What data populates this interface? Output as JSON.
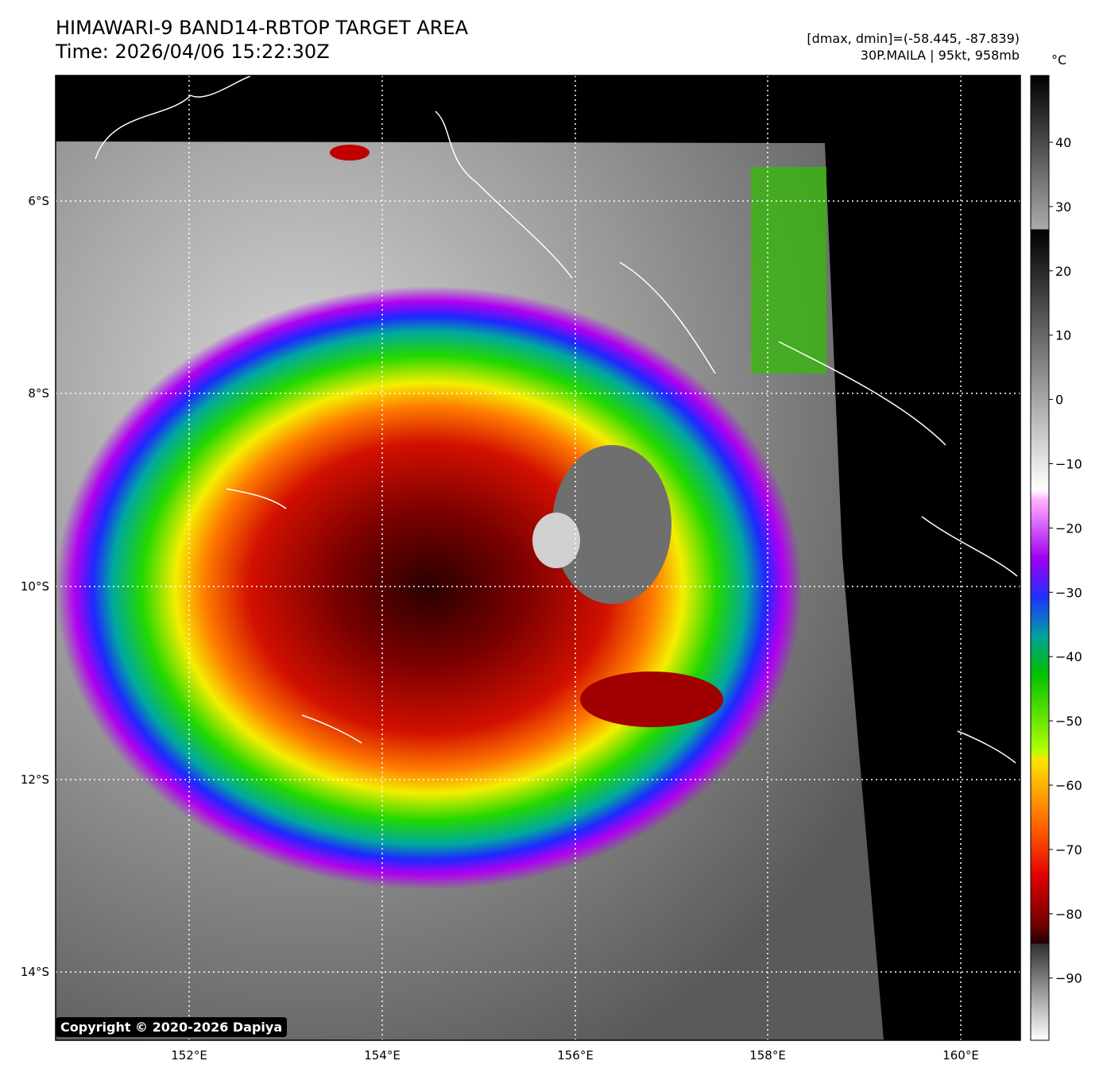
{
  "header": {
    "title_line1": "HIMAWARI-9 BAND14-RBTOP TARGET AREA",
    "title_line2": "Time: 2026/04/06 15:22:30Z",
    "range_text": "[dmax, dmin]=(-58.445, -87.839)",
    "storm_text": "30P.MAILA | 95kt, 958mb"
  },
  "map": {
    "lon_ticks": [
      "152°E",
      "154°E",
      "156°E",
      "158°E",
      "160°E"
    ],
    "lat_ticks": [
      "6°S",
      "8°S",
      "10°S",
      "12°S",
      "14°S"
    ],
    "grid_lines": "dotted white"
  },
  "colorbar": {
    "unit": "°C",
    "ticks": [
      "40",
      "30",
      "20",
      "10",
      "0",
      "−10",
      "−20",
      "−30",
      "−40",
      "−50",
      "−60",
      "−70",
      "−80",
      "−90"
    ]
  },
  "copyright": "Copyright © 2020-2026 Dapiya"
}
